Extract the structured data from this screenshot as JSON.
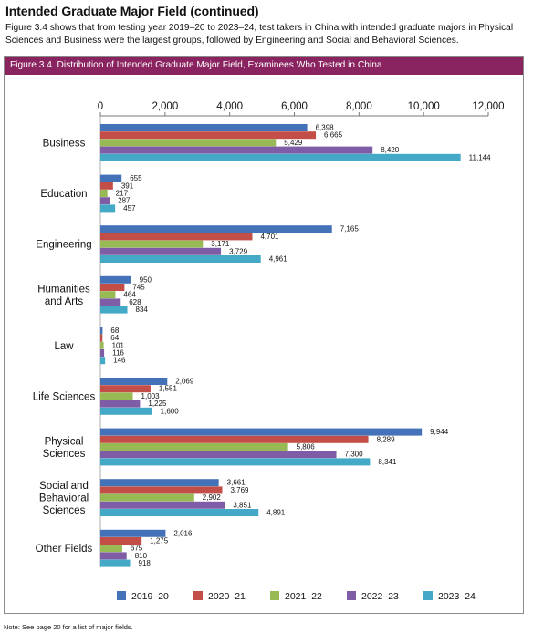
{
  "page": {
    "heading": "Intended Graduate Major Field (continued)",
    "intro": "Figure 3.4 shows that from testing year 2019–20 to 2023–24, test takers in China with intended graduate majors in Physical Sciences and Business were the largest groups, followed by Engineering and Social and Behavioral Sciences.",
    "figure_title": "Figure 3.4. Distribution of Intended Graduate Major Field, Examinees Who Tested in China",
    "note": "Note: See page 20 for a list of major fields."
  },
  "colors": {
    "title_band": "#8a2460",
    "series": [
      "#4472b8",
      "#c24e47",
      "#97ba55",
      "#7f5da6",
      "#44a9c6"
    ]
  },
  "chart_data": {
    "type": "bar",
    "orientation": "horizontal",
    "title": "",
    "xlabel": "",
    "ylabel": "",
    "xlim": [
      0,
      12000
    ],
    "x_ticks": [
      0,
      2000,
      4000,
      6000,
      8000,
      10000,
      12000
    ],
    "x_tick_labels": [
      "0",
      "2,000",
      "4,000",
      "6,000",
      "8,000",
      "10,000",
      "12,000"
    ],
    "x_axis_position": "top",
    "grid": false,
    "legend_position": "bottom",
    "categories": [
      [
        "Business"
      ],
      [
        "Education"
      ],
      [
        "Engineering"
      ],
      [
        "Humanities",
        "and Arts"
      ],
      [
        "Law"
      ],
      [
        "Life Sciences"
      ],
      [
        "Physical",
        "Sciences"
      ],
      [
        "Social and",
        "Behavioral",
        "Sciences"
      ],
      [
        "Other Fields"
      ]
    ],
    "series": [
      {
        "name": "2019–20",
        "values": [
          6398,
          655,
          7165,
          950,
          68,
          2069,
          9944,
          3661,
          2016
        ],
        "labels": [
          "6,398",
          "655",
          "7,165",
          "950",
          "68",
          "2,069",
          "9,944",
          "3,661",
          "2,016"
        ]
      },
      {
        "name": "2020–21",
        "values": [
          6665,
          391,
          4701,
          745,
          64,
          1551,
          8289,
          3769,
          1275
        ],
        "labels": [
          "6,665",
          "391",
          "4,701",
          "745",
          "64",
          "1,551",
          "8,289",
          "3,769",
          "1,275"
        ]
      },
      {
        "name": "2021–22",
        "values": [
          5429,
          217,
          3171,
          464,
          101,
          1003,
          5806,
          2902,
          675
        ],
        "labels": [
          "5,429",
          "217",
          "3,171",
          "464",
          "101",
          "1,003",
          "5,806",
          "2,902",
          "675"
        ]
      },
      {
        "name": "2022–23",
        "values": [
          8420,
          287,
          3729,
          628,
          116,
          1225,
          7300,
          3851,
          810
        ],
        "labels": [
          "8,420",
          "287",
          "3,729",
          "628",
          "116",
          "1,225",
          "7,300",
          "3,851",
          "810"
        ]
      },
      {
        "name": "2023–24",
        "values": [
          11144,
          457,
          4961,
          834,
          146,
          1600,
          8341,
          4891,
          918
        ],
        "labels": [
          "11,144",
          "457",
          "4,961",
          "834",
          "146",
          "1,600",
          "8,341",
          "4,891",
          "918"
        ]
      }
    ]
  }
}
